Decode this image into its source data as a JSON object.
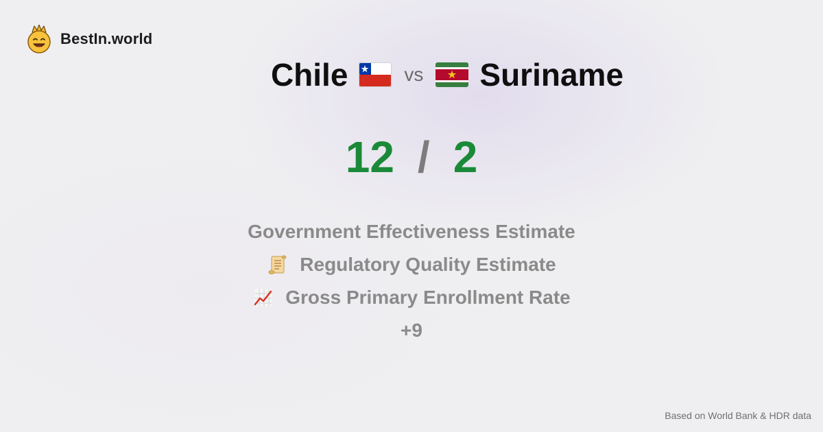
{
  "brand": {
    "name": "BestIn.world",
    "icon": "crown-smiley-icon"
  },
  "comparison": {
    "left_country": "Chile",
    "left_flag_icon": "chile-flag-icon",
    "vs_label": "vs",
    "right_country": "Suriname",
    "right_flag_icon": "suriname-flag-icon"
  },
  "scores": {
    "left": "12",
    "separator": "/",
    "right": "2",
    "color": "#1a8a38"
  },
  "metrics": [
    {
      "label": "Government Effectiveness Estimate",
      "icon": ""
    },
    {
      "label": "Regulatory Quality Estimate",
      "icon": "scroll-icon"
    },
    {
      "label": "Gross Primary Enrollment Rate",
      "icon": "chart-increasing-icon"
    }
  ],
  "more_count": "+9",
  "footer": {
    "source": "Based on World Bank & HDR data"
  }
}
